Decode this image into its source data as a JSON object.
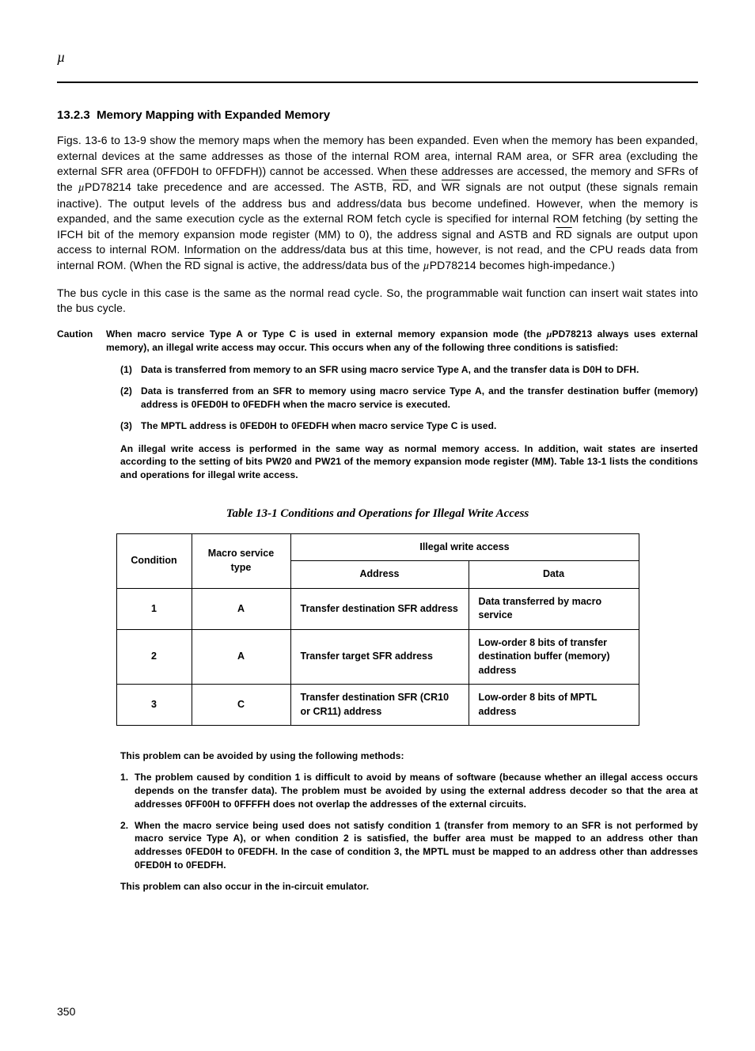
{
  "header": {
    "mu": "µ"
  },
  "section": {
    "number": "13.2.3",
    "title": "Memory Mapping with Expanded Memory"
  },
  "paragraphs": {
    "p1a": "Figs. 13-6 to 13-9 show the memory maps when the memory has been expanded.  Even when the memory has been expanded, external devices at the same addresses as those of the internal ROM area, internal RAM area, or SFR area (excluding the external SFR area (0FFD0H to 0FFDFH)) cannot be accessed.  When these addresses are accessed, the memory and SFRs of the ",
    "p1b": "PD78214 take precedence and are accessed.  The ASTB, ",
    "p1c": ", and ",
    "p1d": " signals are not output (these signals remain inactive).  The output levels of the address bus and address/data bus become undefined.  However, when the memory is expanded, and the same execution cycle as the external ROM fetch cycle is specified for internal ROM fetching (by setting the IFCH bit of the memory expansion mode register (MM) to 0), the address signal and ASTB and ",
    "p1e": " signals are output upon access to internal ROM.  Information on the address/data bus at this time, however, is not read, and the CPU reads data from internal ROM.  (When the ",
    "p1f": " signal is active, the address/data bus of the ",
    "p1g": "PD78214 becomes high-impedance.)",
    "p2": "The bus cycle in this case is the same as the normal read cycle.  So, the programmable wait function can insert wait states into the bus cycle.",
    "rd": "RD",
    "wr": "WR"
  },
  "caution": {
    "label": "Caution",
    "intro_a": "When macro service Type A or Type C is used in external memory expansion mode (the ",
    "intro_b": "PD78213 always uses external memory), an illegal write access may occur.  This occurs when any of the following three conditions is satisfied:",
    "items": [
      {
        "num": "(1)",
        "text": "Data is transferred from memory to an SFR using macro service Type A, and the transfer data is D0H to DFH."
      },
      {
        "num": "(2)",
        "text": "Data is transferred from an SFR to memory using macro service Type A, and the transfer destination buffer (memory) address is 0FED0H to 0FEDFH when the macro service is executed."
      },
      {
        "num": "(3)",
        "text": "The MPTL address is 0FED0H to 0FEDFH when macro service Type C is used."
      }
    ],
    "tail": "An illegal write access is performed in the same way as normal memory access.  In addition, wait states are inserted according to the setting of bits PW20 and PW21 of the memory expansion mode register (MM).  Table 13-1 lists the conditions and operations for illegal write access."
  },
  "table": {
    "title": "Table 13-1  Conditions and Operations for Illegal Write Access",
    "headers": {
      "condition": "Condition",
      "macro": "Macro service type",
      "illegal": "Illegal write access",
      "address": "Address",
      "data": "Data"
    },
    "rows": [
      {
        "cond": "1",
        "type": "A",
        "addr": "Transfer destination SFR address",
        "data": "Data transferred by macro service"
      },
      {
        "cond": "2",
        "type": "A",
        "addr": "Transfer target SFR address",
        "data": "Low-order 8 bits of transfer destination buffer (memory) address"
      },
      {
        "cond": "3",
        "type": "C",
        "addr": "Transfer destination SFR (CR10 or CR11) address",
        "data": "Low-order 8 bits of MPTL address"
      }
    ]
  },
  "methods": {
    "intro": "This problem can be avoided by using the following methods:",
    "items": [
      {
        "n": "1.",
        "t": "The problem caused by condition 1 is difficult to avoid by means of software (because whether an illegal access occurs depends on the transfer data).  The problem must be avoided by using the external address decoder so that the area at addresses 0FF00H to 0FFFFH does not overlap the addresses of the external circuits."
      },
      {
        "n": "2.",
        "t": "When the macro service being used does not satisfy condition 1 (transfer from memory to an SFR is not performed by macro service Type A), or when condition 2 is satisfied, the buffer area must be mapped to an address other than addresses 0FED0H to 0FEDFH.  In the case of condition 3, the MPTL must be mapped to an address other than addresses 0FED0H to 0FEDFH."
      }
    ],
    "tail": "This problem can also occur in the in-circuit emulator."
  },
  "page": "350"
}
